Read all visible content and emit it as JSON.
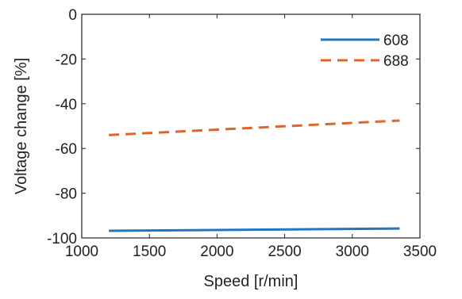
{
  "chart_data": {
    "type": "line",
    "xlabel": "Speed [r/min]",
    "ylabel": "Voltage change [%]",
    "xlim": [
      1000,
      3500
    ],
    "ylim": [
      -100,
      0
    ],
    "xticks": [
      1000,
      1500,
      2000,
      2500,
      3000,
      3500
    ],
    "yticks": [
      0,
      -20,
      -40,
      -60,
      -80,
      -100
    ],
    "grid": false,
    "legend_position": "top-right",
    "series": [
      {
        "name": "608",
        "color": "#1f77c4",
        "style": "solid",
        "x": [
          1200,
          3350
        ],
        "y": [
          -96.8,
          -95.8
        ]
      },
      {
        "name": "688",
        "color": "#e0652a",
        "style": "dashed",
        "x": [
          1200,
          3350
        ],
        "y": [
          -54,
          -47.5
        ]
      }
    ]
  }
}
